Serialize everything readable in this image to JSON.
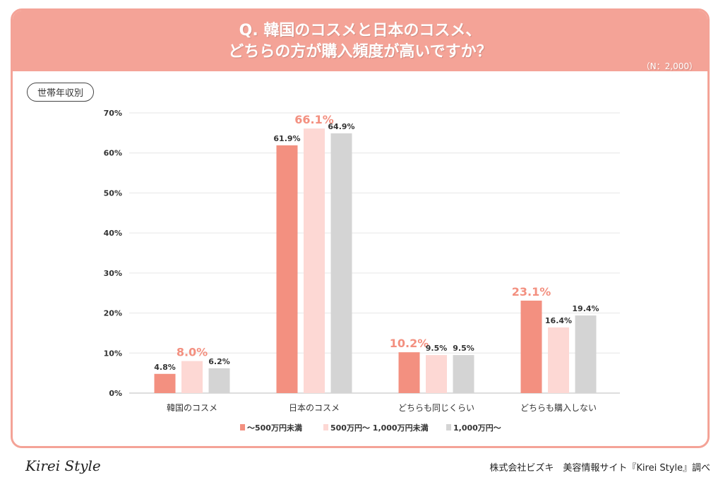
{
  "header": {
    "line1": "Q. 韓国のコスメと日本のコスメ、",
    "line2": "どちらの方が購入頻度が高いですか？",
    "n": "（N：2,000）"
  },
  "tag": "世帯年収別",
  "footer": {
    "logo": "Kirei Style",
    "source": "株式会社ビズキ　美容情報サイト『Kirei Style』調べ"
  },
  "chart_data": {
    "type": "bar",
    "categories": [
      "韓国のコスメ",
      "日本のコスメ",
      "どちらも同じくらい",
      "どちらも購入しない"
    ],
    "series": [
      {
        "name": "～500万円未満",
        "color": "#f39080",
        "values": [
          4.8,
          61.9,
          10.2,
          23.1
        ]
      },
      {
        "name": "500万円～ 1,000万円未満",
        "color": "#fdd8d4",
        "values": [
          8.0,
          66.1,
          9.5,
          16.4
        ]
      },
      {
        "name": "1,000万円～",
        "color": "#d4d4d4",
        "values": [
          6.2,
          64.9,
          9.5,
          19.4
        ]
      }
    ],
    "highlight_color": "#f39080",
    "ylim": [
      0,
      70
    ],
    "yticks": [
      "0%",
      "10%",
      "20%",
      "30%",
      "40%",
      "50%",
      "60%",
      "70%"
    ],
    "grid": true,
    "legend": "bottom"
  }
}
